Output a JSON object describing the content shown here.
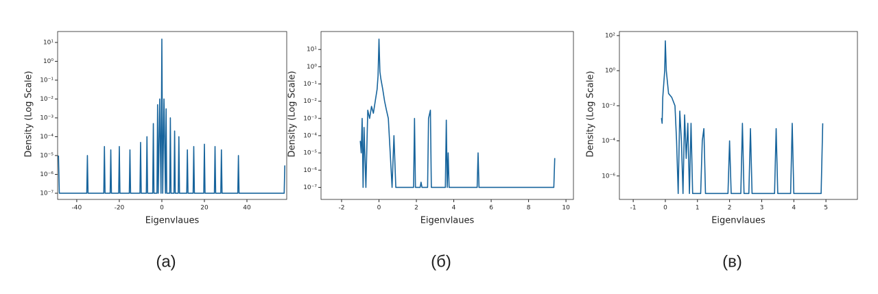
{
  "chart_data": [
    {
      "type": "line",
      "log": true,
      "color": "#17649c",
      "caption": "(a)",
      "x_label": "Eigenvlaues",
      "y_label": "Density (Log Scale)",
      "xlim": [
        -49,
        58.7
      ],
      "xticks": [
        -40,
        -20,
        0,
        20,
        40
      ],
      "ylim": [
        4.7e-08,
        38
      ],
      "yticks": [
        {
          "value": 1e-07,
          "label": "10⁻⁷"
        },
        {
          "value": 1e-06,
          "label": "10⁻⁶"
        },
        {
          "value": 1e-05,
          "label": "10⁻⁵"
        },
        {
          "value": 0.0001,
          "label": "10⁻⁴"
        },
        {
          "value": 0.001,
          "label": "10⁻³"
        },
        {
          "value": 0.01,
          "label": "10⁻²"
        },
        {
          "value": 0.1,
          "label": "10⁻¹"
        },
        {
          "value": 1,
          "label": "10⁰"
        },
        {
          "value": 10,
          "label": "10¹"
        }
      ],
      "x": [
        -48.6,
        -48.2,
        -35.3,
        -35,
        -34.7,
        -27.3,
        -27,
        -26.7,
        -24.3,
        -24,
        -23.7,
        -20.3,
        -20,
        -19.7,
        -15.3,
        -15,
        -14.7,
        -10.3,
        -10,
        -9.7,
        -7.3,
        -7,
        -6.7,
        -4.3,
        -4,
        -3.7,
        -2.3,
        -2,
        -1.7,
        -1,
        -0.4,
        0,
        0.4,
        1,
        1.7,
        2,
        2.3,
        3.7,
        4,
        4.3,
        5.7,
        6,
        6.3,
        7.7,
        8,
        8.3,
        11.7,
        12,
        12.3,
        14.7,
        15,
        15.3,
        19.7,
        20,
        20.3,
        24.7,
        25,
        25.3,
        27.7,
        28,
        28.3,
        35.7,
        36,
        36.3,
        57.5,
        57.8
      ],
      "values": [
        1e-05,
        1e-07,
        1e-07,
        1e-05,
        1e-07,
        1e-07,
        3e-05,
        1e-07,
        1e-07,
        2e-05,
        1e-07,
        1e-07,
        3e-05,
        1e-07,
        1e-07,
        2e-05,
        1e-07,
        1e-07,
        5e-05,
        1e-07,
        1e-07,
        0.0001,
        1e-07,
        1e-07,
        0.0005,
        1e-07,
        1e-07,
        0.005,
        1e-07,
        0.01,
        1e-07,
        15,
        1e-07,
        0.01,
        1e-07,
        0.003,
        1e-07,
        1e-07,
        0.001,
        1e-07,
        1e-07,
        0.0002,
        1e-07,
        1e-07,
        0.0001,
        1e-07,
        1e-07,
        2e-05,
        1e-07,
        1e-07,
        3e-05,
        1e-07,
        1e-07,
        4e-05,
        1e-07,
        1e-07,
        3e-05,
        1e-07,
        1e-07,
        2e-05,
        1e-07,
        1e-07,
        1e-05,
        1e-07,
        1e-07,
        3e-06
      ]
    },
    {
      "type": "line",
      "log": true,
      "color": "#17649c",
      "caption": "(б)",
      "x_label": "Eigenvlaues",
      "y_label": "Density (Log Scale)",
      "xlim": [
        -3.1,
        10.4
      ],
      "xticks": [
        -2,
        0,
        2,
        4,
        6,
        8,
        10
      ],
      "ylim": [
        2e-08,
        110
      ],
      "yticks": [
        {
          "value": 1e-07,
          "label": "10⁻⁷"
        },
        {
          "value": 1e-06,
          "label": "10⁻⁶"
        },
        {
          "value": 1e-05,
          "label": "10⁻⁵"
        },
        {
          "value": 0.0001,
          "label": "10⁻⁴"
        },
        {
          "value": 0.001,
          "label": "10⁻³"
        },
        {
          "value": 0.01,
          "label": "10⁻²"
        },
        {
          "value": 0.1,
          "label": "10⁻¹"
        },
        {
          "value": 1,
          "label": "10⁰"
        },
        {
          "value": 10,
          "label": "10¹"
        }
      ],
      "x": [
        -1,
        -0.95,
        -0.9,
        -0.85,
        -0.8,
        -0.7,
        -0.6,
        -0.5,
        -0.4,
        -0.3,
        -0.2,
        -0.1,
        -0.05,
        0,
        0.05,
        0.1,
        0.2,
        0.3,
        0.4,
        0.5,
        0.6,
        0.7,
        0.8,
        0.9,
        1.85,
        1.9,
        1.95,
        2.2,
        2.25,
        2.3,
        2.6,
        2.65,
        2.75,
        2.8,
        3.55,
        3.6,
        3.65,
        3.7,
        3.75,
        5.25,
        5.3,
        5.35,
        9.35,
        9.4
      ],
      "values": [
        5e-05,
        1e-05,
        0.001,
        1e-07,
        0.0003,
        1e-07,
        0.003,
        0.001,
        0.005,
        0.002,
        0.01,
        0.05,
        0.3,
        40,
        0.5,
        0.2,
        0.05,
        0.01,
        0.003,
        0.001,
        1e-05,
        1e-07,
        0.0001,
        1e-07,
        1e-07,
        0.001,
        1e-07,
        1e-07,
        2e-07,
        1e-07,
        1e-07,
        0.001,
        0.003,
        1e-07,
        1e-07,
        0.0008,
        1e-07,
        1e-05,
        1e-07,
        1e-07,
        1e-05,
        1e-07,
        1e-07,
        5e-06
      ]
    },
    {
      "type": "line",
      "log": true,
      "color": "#17649c",
      "caption": "(в)",
      "x_label": "Eigenvlaues",
      "y_label": "Density (Log Scale)",
      "xlim": [
        -1.43,
        5.98
      ],
      "xticks": [
        -1,
        0,
        1,
        2,
        3,
        4,
        5
      ],
      "ylim": [
        4.6e-08,
        170
      ],
      "yticks": [
        {
          "value": 1e-06,
          "label": "10⁻⁶"
        },
        {
          "value": 0.0001,
          "label": "10⁻⁴"
        },
        {
          "value": 0.01,
          "label": "10⁻²"
        },
        {
          "value": 1,
          "label": "10⁰"
        },
        {
          "value": 100,
          "label": "10²"
        }
      ],
      "x": [
        -0.12,
        -0.1,
        -0.08,
        -0.02,
        0,
        0.03,
        0.1,
        0.2,
        0.3,
        0.35,
        0.4,
        0.45,
        0.5,
        0.55,
        0.6,
        0.65,
        0.7,
        0.75,
        0.8,
        0.85,
        1.1,
        1.15,
        1.2,
        1.25,
        1.95,
        2,
        2.05,
        2.35,
        2.4,
        2.45,
        2.6,
        2.65,
        2.7,
        3.4,
        3.45,
        3.5,
        3.9,
        3.95,
        4,
        4.85,
        4.9
      ],
      "values": [
        0.002,
        0.001,
        0.03,
        1,
        50,
        1,
        0.05,
        0.03,
        0.01,
        0.0001,
        1e-07,
        0.005,
        0.0001,
        1e-07,
        0.003,
        1e-05,
        0.001,
        1e-07,
        0.001,
        1e-07,
        1e-07,
        0.0001,
        0.0005,
        1e-07,
        1e-07,
        0.0001,
        1e-07,
        1e-07,
        0.001,
        1e-07,
        1e-07,
        0.0005,
        1e-07,
        1e-07,
        0.0005,
        1e-07,
        1e-07,
        0.001,
        1e-07,
        1e-07,
        0.001
      ]
    }
  ]
}
